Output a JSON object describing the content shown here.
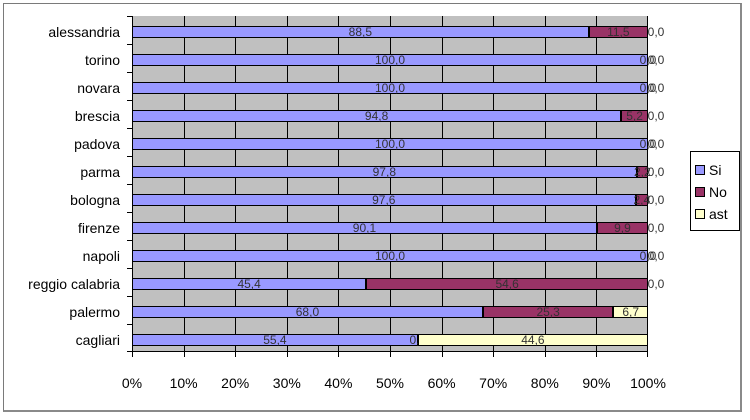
{
  "chart_data": {
    "type": "bar",
    "orientation": "horizontal",
    "stacked": "percent",
    "title": "",
    "xlabel": "",
    "ylabel": "",
    "xlim": [
      0,
      100
    ],
    "x_tick_labels": [
      "0%",
      "10%",
      "20%",
      "30%",
      "40%",
      "50%",
      "60%",
      "70%",
      "80%",
      "90%",
      "100%"
    ],
    "grid": true,
    "legend_position": "right",
    "categories": [
      "alessandria",
      "torino",
      "novara",
      "brescia",
      "padova",
      "parma",
      "bologna",
      "firenze",
      "napoli",
      "reggio calabria",
      "palermo",
      "cagliari"
    ],
    "series": [
      {
        "name": "Si",
        "color": "#9999ff",
        "values": [
          88.5,
          100.0,
          100.0,
          94.8,
          100.0,
          97.8,
          97.6,
          90.1,
          100.0,
          45.4,
          68.0,
          55.4
        ],
        "labels": [
          "88,5",
          "100,0",
          "100,0",
          "94,8",
          "100,0",
          "97,8",
          "97,6",
          "90,1",
          "100,0",
          "45,4",
          "68,0",
          "55,4"
        ]
      },
      {
        "name": "No",
        "color": "#993366",
        "values": [
          11.5,
          0.0,
          0.0,
          5.2,
          0.0,
          2.2,
          2.4,
          9.9,
          0.0,
          54.6,
          25.3,
          0.0
        ],
        "labels": [
          "11,5",
          "0,0",
          "0,0",
          "5,2",
          "0,0",
          "2,2",
          "2,4",
          "9,9",
          "0,0",
          "54,6",
          "25,3",
          "0,0"
        ]
      },
      {
        "name": "ast",
        "color": "#ffffcc",
        "values": [
          0.0,
          0.0,
          0.0,
          0.0,
          0.0,
          0.0,
          0.0,
          0.0,
          0.0,
          0.0,
          6.7,
          44.6
        ],
        "labels": [
          "0,0",
          "0,0",
          "0,0",
          "0,0",
          "0,0",
          "0,0",
          "0,0",
          "0,0",
          "0,0",
          "0,0",
          "6,7",
          "44,6"
        ]
      }
    ]
  },
  "colors": {
    "plot_background": "#c0c0c0",
    "gridline": "#000000"
  }
}
